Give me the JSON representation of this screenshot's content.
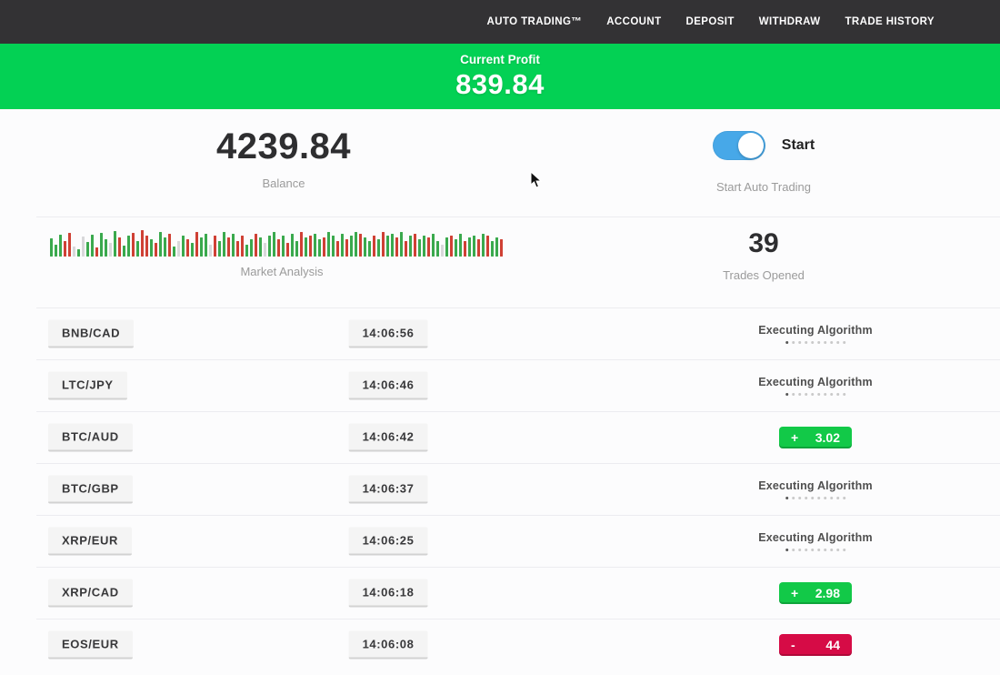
{
  "nav": {
    "items": [
      {
        "label": "AUTO TRADING™"
      },
      {
        "label": "ACCOUNT"
      },
      {
        "label": "DEPOSIT"
      },
      {
        "label": "WITHDRAW"
      },
      {
        "label": "TRADE HISTORY"
      }
    ]
  },
  "profit_banner": {
    "label": "Current Profit",
    "value": "839.84",
    "bg_color": "#03d154"
  },
  "stats": {
    "balance": {
      "value": "4239.84",
      "label": "Balance"
    },
    "auto_trading": {
      "toggle_label": "Start",
      "caption": "Start Auto Trading",
      "toggle_on": true,
      "toggle_color": "#47a8e8"
    },
    "market_analysis": {
      "label": "Market Analysis",
      "colors": {
        "g": "#3aa94d",
        "r": "#cf4034",
        "l": "#d8d8da"
      },
      "bars": [
        "g20",
        "g13",
        "g24",
        "r17",
        "r26",
        "l11",
        "g8",
        "l22",
        "g16",
        "g24",
        "r10",
        "g26",
        "g19",
        "l15",
        "g28",
        "r21",
        "g12",
        "g23",
        "r26",
        "g17",
        "r29",
        "r23",
        "g19",
        "r15",
        "g27",
        "g21",
        "r25",
        "g11",
        "l17",
        "g23",
        "r19",
        "g15",
        "r27",
        "g21",
        "g25",
        "l13",
        "r23",
        "g17",
        "g27",
        "r21",
        "g25",
        "r17",
        "r23",
        "g13",
        "g19",
        "r25",
        "g21",
        "l15",
        "g23",
        "g27",
        "r19",
        "g23",
        "r15",
        "g25",
        "g17",
        "r27",
        "g21",
        "r23",
        "g25",
        "g19",
        "r21",
        "g27",
        "g23",
        "r17",
        "g25",
        "r19",
        "g23",
        "g27",
        "r25",
        "g21",
        "g17",
        "r23",
        "g19",
        "r27",
        "g23",
        "g25",
        "r21",
        "g27",
        "r17",
        "g23",
        "r25",
        "g19",
        "g23",
        "r21",
        "g25",
        "g17",
        "l13",
        "g21",
        "r23",
        "g19",
        "g25",
        "r17",
        "g21",
        "g23",
        "r19",
        "g25",
        "r23",
        "g17",
        "g21",
        "r19"
      ]
    },
    "trades_opened": {
      "value": "39",
      "label": "Trades Opened"
    }
  },
  "trades": {
    "executing_label": "Executing Algorithm",
    "progress_dots": 10,
    "rows": [
      {
        "pair": "BNB/CAD",
        "time": "14:06:56",
        "status": "executing"
      },
      {
        "pair": "LTC/JPY",
        "time": "14:06:46",
        "status": "executing"
      },
      {
        "pair": "BTC/AUD",
        "time": "14:06:42",
        "status": "profit",
        "sign": "+",
        "amount": "3.02"
      },
      {
        "pair": "BTC/GBP",
        "time": "14:06:37",
        "status": "executing"
      },
      {
        "pair": "XRP/EUR",
        "time": "14:06:25",
        "status": "executing"
      },
      {
        "pair": "XRP/CAD",
        "time": "14:06:18",
        "status": "profit",
        "sign": "+",
        "amount": "2.98"
      },
      {
        "pair": "EOS/EUR",
        "time": "14:06:08",
        "status": "loss",
        "sign": "-",
        "amount": "44"
      }
    ]
  },
  "colors": {
    "nav_bg": "#333234",
    "profit_green": "#12c948",
    "loss_red": "#d60b46"
  }
}
